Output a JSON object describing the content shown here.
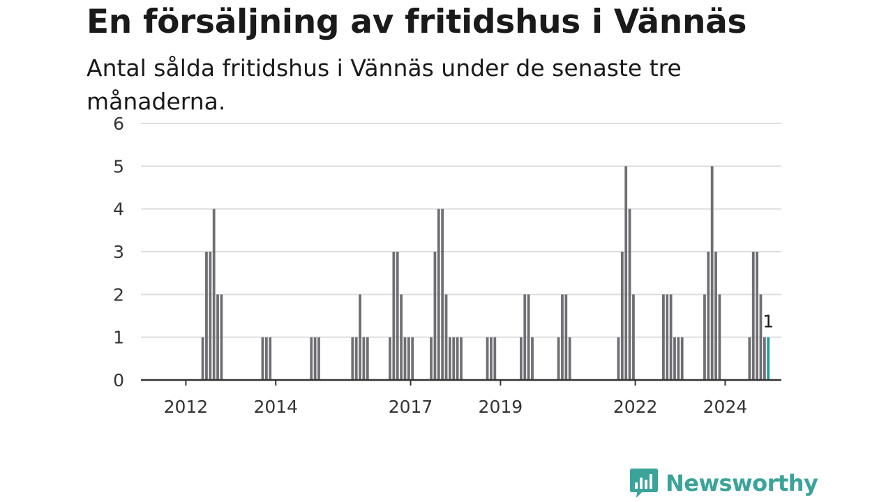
{
  "title": "En försäljning av fritidshus i Vännäs",
  "subtitle": "Antal sålda fritidshus i Vännäs under de senaste tre månaderna.",
  "brand": {
    "name": "Newsworthy",
    "icon": "newsworthy-logo-icon",
    "color": "#3aa39a"
  },
  "colors": {
    "bar": "#6e6e73",
    "highlight": "#1a9e96",
    "grid": "#dddddd",
    "axis": "#333333"
  },
  "chart_data": {
    "type": "bar",
    "x_start": "2011-01",
    "x_end": "2025-03",
    "ylim": [
      0,
      6
    ],
    "y_ticks": [
      0,
      1,
      2,
      3,
      4,
      5,
      6
    ],
    "x_ticks": [
      {
        "label": "2012",
        "date": "2012-01"
      },
      {
        "label": "2014",
        "date": "2014-01"
      },
      {
        "label": "2017",
        "date": "2017-01"
      },
      {
        "label": "2019",
        "date": "2019-01"
      },
      {
        "label": "2022",
        "date": "2022-01"
      },
      {
        "label": "2024",
        "date": "2024-01"
      }
    ],
    "grid": true,
    "series": [
      {
        "points": [
          {
            "x": "2012-05",
            "y": 1
          },
          {
            "x": "2012-06",
            "y": 3
          },
          {
            "x": "2012-07",
            "y": 3
          },
          {
            "x": "2012-08",
            "y": 4
          },
          {
            "x": "2012-09",
            "y": 2
          },
          {
            "x": "2012-10",
            "y": 2
          },
          {
            "x": "2013-09",
            "y": 1
          },
          {
            "x": "2013-10",
            "y": 1
          },
          {
            "x": "2013-11",
            "y": 1
          },
          {
            "x": "2014-10",
            "y": 1
          },
          {
            "x": "2014-11",
            "y": 1
          },
          {
            "x": "2014-12",
            "y": 1
          },
          {
            "x": "2015-09",
            "y": 1
          },
          {
            "x": "2015-10",
            "y": 1
          },
          {
            "x": "2015-11",
            "y": 2
          },
          {
            "x": "2015-12",
            "y": 1
          },
          {
            "x": "2016-01",
            "y": 1
          },
          {
            "x": "2016-07",
            "y": 1
          },
          {
            "x": "2016-08",
            "y": 3
          },
          {
            "x": "2016-09",
            "y": 3
          },
          {
            "x": "2016-10",
            "y": 2
          },
          {
            "x": "2016-11",
            "y": 1
          },
          {
            "x": "2016-12",
            "y": 1
          },
          {
            "x": "2017-01",
            "y": 1
          },
          {
            "x": "2017-06",
            "y": 1
          },
          {
            "x": "2017-07",
            "y": 3
          },
          {
            "x": "2017-08",
            "y": 4
          },
          {
            "x": "2017-09",
            "y": 4
          },
          {
            "x": "2017-10",
            "y": 2
          },
          {
            "x": "2017-11",
            "y": 1
          },
          {
            "x": "2017-12",
            "y": 1
          },
          {
            "x": "2018-01",
            "y": 1
          },
          {
            "x": "2018-02",
            "y": 1
          },
          {
            "x": "2018-09",
            "y": 1
          },
          {
            "x": "2018-10",
            "y": 1
          },
          {
            "x": "2018-11",
            "y": 1
          },
          {
            "x": "2019-06",
            "y": 1
          },
          {
            "x": "2019-07",
            "y": 2
          },
          {
            "x": "2019-08",
            "y": 2
          },
          {
            "x": "2019-09",
            "y": 1
          },
          {
            "x": "2020-04",
            "y": 1
          },
          {
            "x": "2020-05",
            "y": 2
          },
          {
            "x": "2020-06",
            "y": 2
          },
          {
            "x": "2020-07",
            "y": 1
          },
          {
            "x": "2021-08",
            "y": 1
          },
          {
            "x": "2021-09",
            "y": 3
          },
          {
            "x": "2021-10",
            "y": 5
          },
          {
            "x": "2021-11",
            "y": 4
          },
          {
            "x": "2021-12",
            "y": 2
          },
          {
            "x": "2022-08",
            "y": 2
          },
          {
            "x": "2022-09",
            "y": 2
          },
          {
            "x": "2022-10",
            "y": 2
          },
          {
            "x": "2022-11",
            "y": 1
          },
          {
            "x": "2022-12",
            "y": 1
          },
          {
            "x": "2023-01",
            "y": 1
          },
          {
            "x": "2023-07",
            "y": 2
          },
          {
            "x": "2023-08",
            "y": 3
          },
          {
            "x": "2023-09",
            "y": 5
          },
          {
            "x": "2023-10",
            "y": 3
          },
          {
            "x": "2023-11",
            "y": 2
          },
          {
            "x": "2024-07",
            "y": 1
          },
          {
            "x": "2024-08",
            "y": 3
          },
          {
            "x": "2024-09",
            "y": 3
          },
          {
            "x": "2024-10",
            "y": 2
          },
          {
            "x": "2024-11",
            "y": 1
          }
        ]
      }
    ],
    "highlight": {
      "x": "2024-12",
      "y": 1,
      "label": "1"
    }
  }
}
